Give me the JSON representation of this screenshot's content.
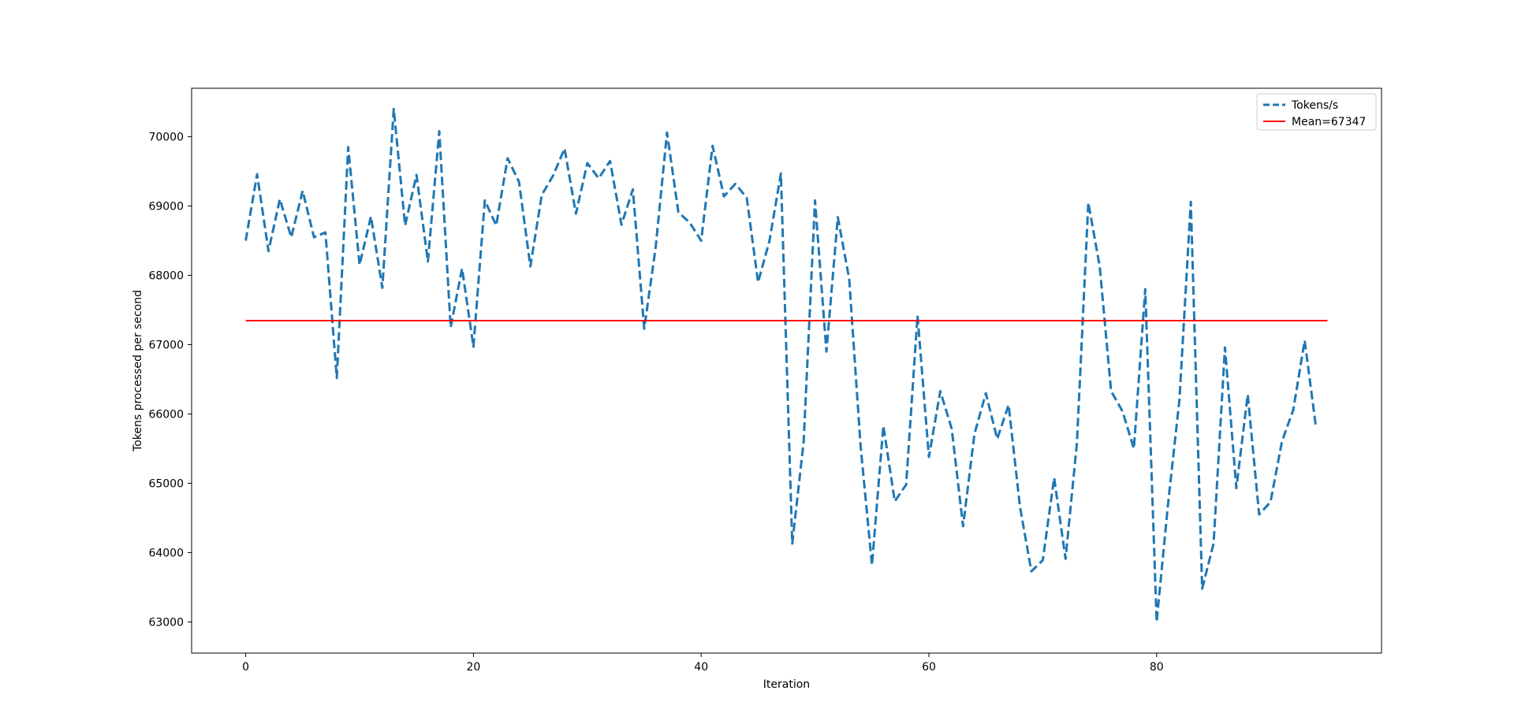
{
  "chart_data": {
    "type": "line",
    "title": "",
    "xlabel": "Iteration",
    "ylabel": "Tokens processed per second",
    "xlim": [
      -4.75,
      99.75
    ],
    "ylim": [
      62550,
      70700
    ],
    "xticks": [
      0,
      20,
      40,
      60,
      80
    ],
    "yticks": [
      63000,
      64000,
      65000,
      66000,
      67000,
      68000,
      69000,
      70000
    ],
    "grid": false,
    "legend_position": "upper right",
    "series": [
      {
        "name": "Tokens/s",
        "color": "#1f77b4",
        "style": "dashed",
        "x": [
          0,
          1,
          2,
          3,
          4,
          5,
          6,
          7,
          8,
          9,
          10,
          11,
          12,
          13,
          14,
          15,
          16,
          17,
          18,
          19,
          20,
          21,
          22,
          23,
          24,
          25,
          26,
          27,
          28,
          29,
          30,
          31,
          32,
          33,
          34,
          35,
          36,
          37,
          38,
          39,
          40,
          41,
          42,
          43,
          44,
          45,
          46,
          47,
          48,
          49,
          50,
          51,
          52,
          53,
          54,
          55,
          56,
          57,
          58,
          59,
          60,
          61,
          62,
          63,
          64,
          65,
          66,
          67,
          68,
          69,
          70,
          71,
          72,
          73,
          74,
          75,
          76,
          77,
          78,
          79,
          80,
          81,
          82,
          83,
          84,
          85,
          86,
          87,
          88,
          89,
          90,
          91,
          92,
          93,
          94
        ],
        "values": [
          68500,
          69460,
          68350,
          69100,
          68550,
          69220,
          68550,
          68620,
          66520,
          69850,
          68150,
          68850,
          67820,
          70400,
          68720,
          69450,
          68200,
          70080,
          67250,
          68100,
          66970,
          69080,
          68720,
          69690,
          69350,
          68130,
          69160,
          69440,
          69830,
          68890,
          69620,
          69400,
          69650,
          68730,
          69240,
          67230,
          68400,
          70060,
          68910,
          68760,
          68500,
          69870,
          69140,
          69320,
          69120,
          67900,
          68500,
          69470,
          64130,
          65600,
          69080,
          66900,
          68840,
          67950,
          65540,
          63820,
          65830,
          64740,
          64980,
          67420,
          65380,
          66330,
          65790,
          64380,
          65710,
          66300,
          65640,
          66130,
          64660,
          63730,
          63890,
          65080,
          63910,
          65580,
          69050,
          68130,
          66330,
          66040,
          65500,
          67800,
          63000,
          64700,
          66200,
          69060,
          63480,
          64130,
          66960,
          64930,
          66280,
          64550,
          64730,
          65600,
          66060,
          67060,
          65800
        ]
      },
      {
        "name": "Mean=67347",
        "color": "#ff0000",
        "style": "solid",
        "x": [
          0,
          95
        ],
        "values": [
          67347,
          67347
        ]
      }
    ]
  }
}
